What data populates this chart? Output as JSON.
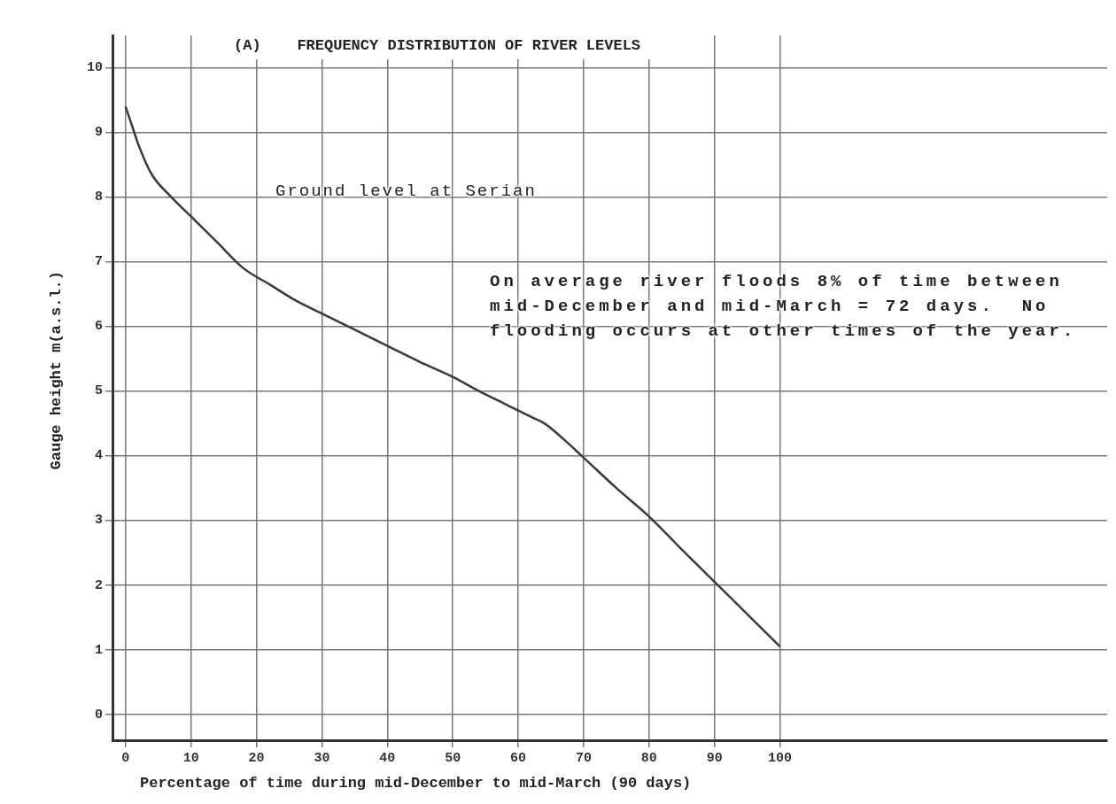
{
  "chart_data": {
    "type": "line",
    "title": "(A)    FREQUENCY DISTRIBUTION OF RIVER LEVELS",
    "xlabel": "Percentage of time during mid-December to mid-March (90 days)",
    "ylabel": "Gauge height  m(a.s.l.)",
    "x": [
      0,
      1,
      2,
      4,
      7,
      10,
      14,
      18,
      22,
      26,
      30,
      34,
      40,
      45,
      50,
      54,
      58,
      62,
      64,
      67,
      70,
      75,
      80,
      85,
      90,
      95,
      100
    ],
    "series": [
      {
        "color": "#3a3a3a",
        "values": [
          9.4,
          9.1,
          8.8,
          8.35,
          8.0,
          7.7,
          7.3,
          6.9,
          6.65,
          6.4,
          6.2,
          6.0,
          5.7,
          5.45,
          5.22,
          5.0,
          4.8,
          4.6,
          4.5,
          4.25,
          3.97,
          3.5,
          3.06,
          2.55,
          2.05,
          1.55,
          1.05
        ]
      }
    ],
    "xlim": [
      -2,
      150
    ],
    "xticks": [
      0,
      10,
      20,
      30,
      40,
      50,
      60,
      70,
      80,
      90,
      100
    ],
    "ylim": [
      -0.4,
      10.5
    ],
    "yticks": [
      0,
      1,
      2,
      3,
      4,
      5,
      6,
      7,
      8,
      9,
      10
    ],
    "annotations": [
      "Ground level at Serian",
      "On average river floods 8% of time between mid-December and mid-March = 72 days.  No flooding occurs at other times of the year."
    ],
    "grid": true,
    "legend": false,
    "marker": "none",
    "line_style": "solid"
  }
}
